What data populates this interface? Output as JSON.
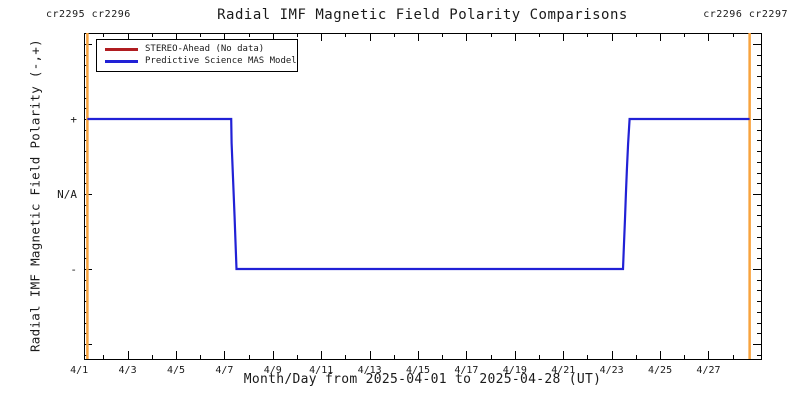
{
  "title": "Radial IMF Magnetic Field Polarity Comparisons",
  "carrington_labels": {
    "left": "cr2295 cr2296",
    "right": "cr2296 cr2297"
  },
  "colors": {
    "boundary_orange": "#f8a33e",
    "stereo_red": "#b01c20",
    "mas_blue": "#2121d6",
    "axis_black": "#000000"
  },
  "chart_data": {
    "type": "line",
    "title": "Radial IMF Magnetic Field Polarity Comparisons",
    "xlabel": "Month/Day from 2025-04-01 to 2025-04-28 (UT)",
    "ylabel": "Radial IMF Magnetic Field Polarity (-,+)",
    "grid": false,
    "x_axis": {
      "lim": [
        1.2,
        29.17
      ],
      "major_tick_days": [
        1,
        3,
        5,
        7,
        9,
        11,
        13,
        15,
        17,
        19,
        21,
        23,
        25,
        27
      ],
      "major_tick_labels": [
        "4/1",
        "4/3",
        "4/5",
        "4/7",
        "4/9",
        "4/11",
        "4/13",
        "4/15",
        "4/17",
        "4/19",
        "4/21",
        "4/23",
        "4/25",
        "4/27"
      ],
      "minor_tick_step_days": 1,
      "tick_day_range": [
        2,
        28
      ]
    },
    "y_axis": {
      "lim": [
        -2.2,
        2.147
      ],
      "major_tick_values": [
        -2,
        -1,
        0,
        1,
        2
      ],
      "labeled_ticks": [
        {
          "value": 1,
          "label": "+"
        },
        {
          "value": 0,
          "label": "N/A"
        },
        {
          "value": -1,
          "label": "-"
        }
      ],
      "minor_ticks_per_major": 7
    },
    "boundary_lines": {
      "color_key": "boundary_orange",
      "days": [
        1.34,
        28.7
      ]
    },
    "legend": {
      "position": "top-left",
      "entries": [
        {
          "label": "STEREO-Ahead (No data)",
          "color_key": "stereo_red"
        },
        {
          "label": "Predictive Science MAS Model",
          "color_key": "mas_blue"
        }
      ]
    },
    "series": [
      {
        "name": "STEREO-Ahead",
        "color_key": "stereo_red",
        "points": []
      },
      {
        "name": "Predictive Science MAS Model",
        "color_key": "mas_blue",
        "points": [
          [
            1.34,
            1
          ],
          [
            7.28,
            1
          ],
          [
            7.3,
            0.68
          ],
          [
            7.34,
            0.35
          ],
          [
            7.38,
            0.02
          ],
          [
            7.42,
            -0.31
          ],
          [
            7.46,
            -0.64
          ],
          [
            7.5,
            -1
          ],
          [
            23.47,
            -1
          ],
          [
            23.51,
            -0.66
          ],
          [
            23.55,
            -0.33
          ],
          [
            23.59,
            0.0
          ],
          [
            23.63,
            0.33
          ],
          [
            23.68,
            0.67
          ],
          [
            23.74,
            1
          ],
          [
            28.7,
            1
          ]
        ]
      }
    ]
  }
}
